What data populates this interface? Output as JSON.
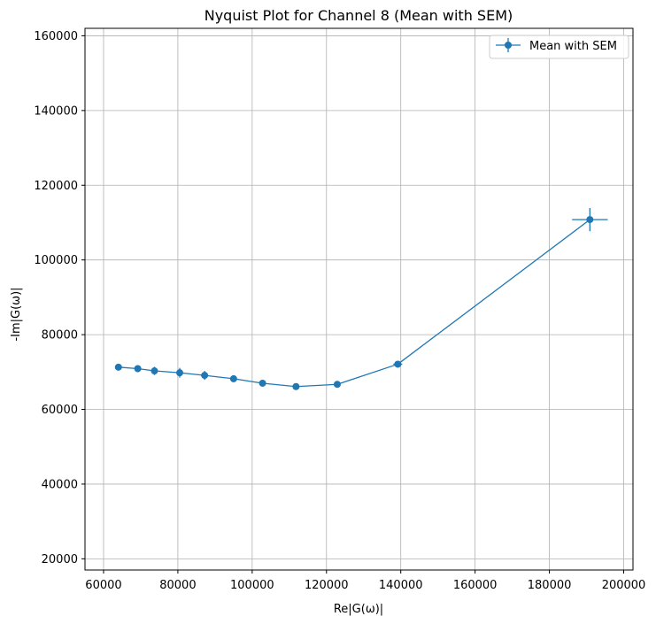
{
  "chart_data": {
    "type": "line",
    "title": "Nyquist Plot for Channel 8 (Mean with SEM)",
    "xlabel": "Re|G(ω)|",
    "ylabel": "-Im|G(ω)|",
    "xlim": [
      55000,
      202500
    ],
    "ylim": [
      17000,
      162000
    ],
    "xticks": [
      60000,
      80000,
      100000,
      120000,
      140000,
      160000,
      180000,
      200000
    ],
    "yticks": [
      20000,
      40000,
      60000,
      80000,
      100000,
      120000,
      140000,
      160000
    ],
    "grid": true,
    "legend_position": "top-right",
    "series": [
      {
        "name": "Mean with SEM",
        "color": "#1f77b4",
        "marker": "circle",
        "x": [
          64000,
          69200,
          73700,
          80500,
          87200,
          95000,
          102800,
          111800,
          122900,
          139200,
          190900
        ],
        "y": [
          71300,
          70900,
          70300,
          69800,
          69100,
          68200,
          67000,
          66100,
          66700,
          72100,
          110800
        ],
        "x_err": [
          700,
          800,
          800,
          900,
          900,
          800,
          800,
          900,
          800,
          1200,
          4800
        ],
        "y_err": [
          700,
          900,
          1100,
          1300,
          1200,
          900,
          700,
          700,
          600,
          700,
          3100
        ]
      }
    ]
  }
}
